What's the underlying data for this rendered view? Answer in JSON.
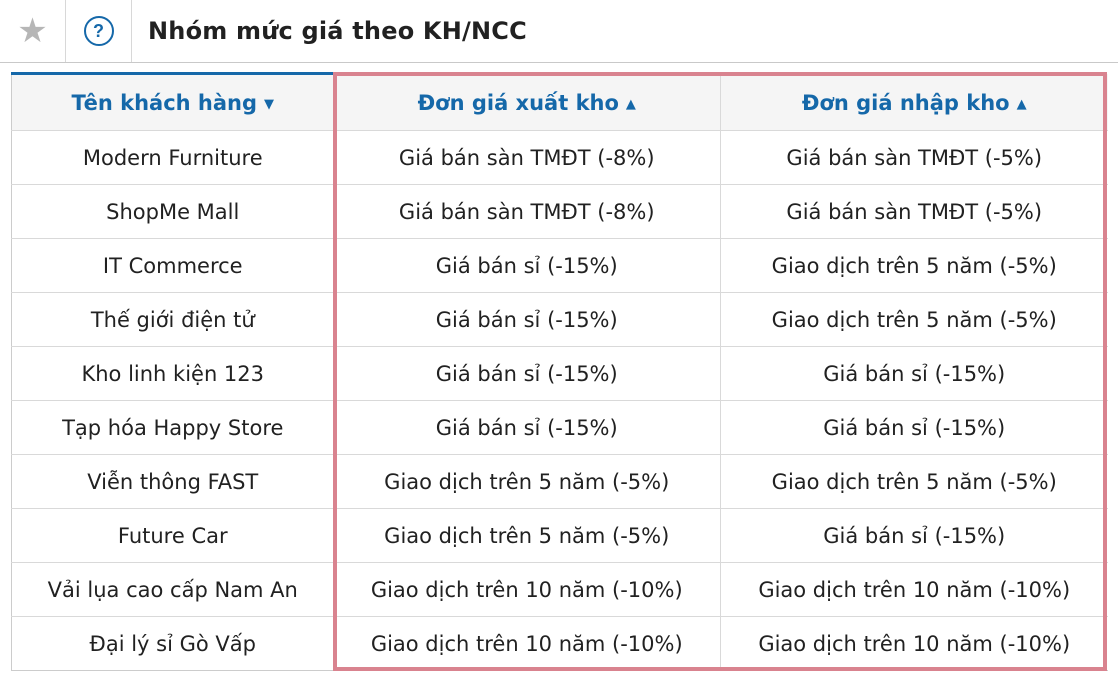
{
  "titlebar": {
    "title": "Nhóm mức giá theo KH/NCC"
  },
  "icons": {
    "star": "★",
    "help": "?"
  },
  "colors": {
    "primary_blue": "#1568a9",
    "highlight_pink": "#d9838f",
    "header_bg": "#f5f5f5",
    "border_gray": "#d9d9d9",
    "text_dark": "#212121",
    "star_gray": "#b6b6b6"
  },
  "table": {
    "columns": [
      {
        "label": "Tên khách hàng",
        "sort_glyph": "▼",
        "sort_dir": "desc"
      },
      {
        "label": "Đơn giá xuất kho",
        "sort_glyph": "▲",
        "sort_dir": "asc"
      },
      {
        "label": "Đơn giá nhập kho",
        "sort_glyph": "▲",
        "sort_dir": "asc"
      }
    ],
    "rows": [
      [
        "Modern Furniture",
        "Giá bán sàn TMĐT (-8%)",
        "Giá bán sàn TMĐT (-5%)"
      ],
      [
        "ShopMe Mall",
        "Giá bán sàn TMĐT (-8%)",
        "Giá bán sàn TMĐT (-5%)"
      ],
      [
        "IT Commerce",
        "Giá bán sỉ (-15%)",
        "Giao dịch trên 5 năm (-5%)"
      ],
      [
        "Thế giới điện tử",
        "Giá bán sỉ (-15%)",
        "Giao dịch trên 5 năm (-5%)"
      ],
      [
        "Kho linh kiện 123",
        "Giá bán sỉ (-15%)",
        "Giá bán sỉ (-15%)"
      ],
      [
        "Tạp hóa Happy Store",
        "Giá bán sỉ (-15%)",
        "Giá bán sỉ (-15%)"
      ],
      [
        "Viễn thông FAST",
        "Giao dịch trên 5 năm (-5%)",
        "Giao dịch trên 5 năm (-5%)"
      ],
      [
        "Future Car",
        "Giao dịch trên 5 năm (-5%)",
        "Giá bán sỉ (-15%)"
      ],
      [
        "Vải lụa cao cấp Nam An",
        "Giao dịch trên 10 năm (-10%)",
        "Giao dịch trên 10 năm (-10%)"
      ],
      [
        "Đại lý sỉ Gò Vấp",
        "Giao dịch trên 10 năm (-10%)",
        "Giao dịch trên 10 năm (-10%)"
      ]
    ]
  }
}
